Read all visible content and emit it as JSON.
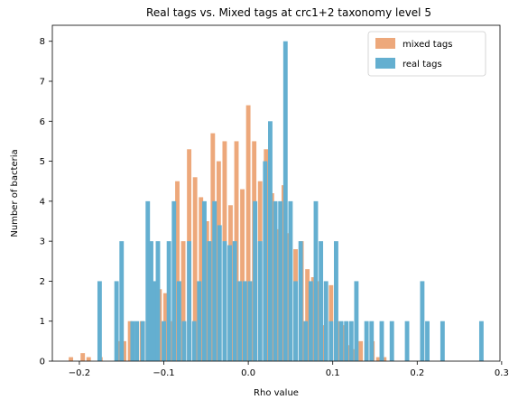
{
  "chart_data": {
    "type": "bar",
    "title": "Real tags vs. Mixed tags at crc1+2 taxonomy level 5",
    "xlabel": "Rho value",
    "ylabel": "Number of bacteria",
    "xlim": [
      -0.232,
      0.298
    ],
    "ylim": [
      0,
      8.4
    ],
    "x_ticks": [
      -0.2,
      -0.1,
      0.0,
      0.1,
      0.2,
      0.3
    ],
    "x_tick_labels": [
      "−0.2",
      "−0.1",
      "0.0",
      "0.1",
      "0.2",
      "0.3"
    ],
    "y_ticks": [
      0,
      1,
      2,
      3,
      4,
      5,
      6,
      7,
      8
    ],
    "y_tick_labels": [
      "0",
      "1",
      "2",
      "3",
      "4",
      "5",
      "6",
      "7",
      "8"
    ],
    "grid": false,
    "legend_position": "top-right",
    "series": [
      {
        "name": "mixed tags",
        "color": "#eda87b",
        "x": [
          -0.21,
          -0.196,
          -0.189,
          -0.175,
          -0.154,
          -0.147,
          -0.14,
          -0.126,
          -0.119,
          -0.112,
          -0.105,
          -0.098,
          -0.091,
          -0.084,
          -0.077,
          -0.07,
          -0.063,
          -0.056,
          -0.049,
          -0.042,
          -0.035,
          -0.028,
          -0.021,
          -0.014,
          -0.007,
          0.0,
          0.007,
          0.014,
          0.021,
          0.028,
          0.035,
          0.042,
          0.049,
          0.056,
          0.063,
          0.07,
          0.077,
          0.084,
          0.091,
          0.098,
          0.105,
          0.112,
          0.119,
          0.126,
          0.133,
          0.14,
          0.147,
          0.154,
          0.161
        ],
        "values": [
          0.1,
          0.2,
          0.1,
          0.1,
          0.5,
          0.5,
          1.0,
          1.0,
          1.0,
          1.9,
          1.8,
          1.7,
          1.0,
          4.5,
          3.0,
          5.3,
          4.6,
          4.1,
          3.5,
          5.7,
          5.0,
          5.5,
          3.9,
          5.5,
          4.3,
          6.4,
          5.5,
          4.5,
          5.3,
          4.2,
          3.3,
          4.4,
          3.2,
          2.8,
          3.0,
          2.3,
          2.1,
          2.0,
          0.9,
          1.9,
          1.0,
          0.9,
          0.4,
          0.3,
          0.5,
          0.5,
          0.5,
          0.1,
          0.1
        ]
      },
      {
        "name": "real tags",
        "color": "#64afd0",
        "x": [
          -0.176,
          -0.156,
          -0.15,
          -0.137,
          -0.132,
          -0.125,
          -0.119,
          -0.115,
          -0.111,
          -0.107,
          -0.1,
          -0.094,
          -0.088,
          -0.082,
          -0.076,
          -0.07,
          -0.064,
          -0.058,
          -0.052,
          -0.046,
          -0.04,
          -0.034,
          -0.028,
          -0.022,
          -0.016,
          -0.01,
          -0.004,
          0.002,
          0.008,
          0.014,
          0.02,
          0.026,
          0.032,
          0.038,
          0.044,
          0.05,
          0.056,
          0.062,
          0.068,
          0.074,
          0.08,
          0.086,
          0.092,
          0.098,
          0.104,
          0.11,
          0.116,
          0.122,
          0.128,
          0.14,
          0.146,
          0.158,
          0.17,
          0.188,
          0.206,
          0.212,
          0.23,
          0.276
        ],
        "values": [
          2.0,
          2.0,
          3.0,
          1.0,
          1.0,
          1.0,
          4.0,
          3.0,
          2.0,
          3.0,
          1.0,
          3.0,
          4.0,
          2.0,
          1.0,
          3.0,
          1.0,
          2.0,
          4.0,
          3.0,
          4.0,
          3.4,
          3.0,
          2.9,
          3.0,
          2.0,
          2.0,
          2.0,
          4.0,
          3.0,
          5.0,
          6.0,
          4.0,
          4.0,
          8.0,
          4.0,
          2.0,
          3.0,
          1.0,
          2.0,
          4.0,
          3.0,
          2.0,
          1.0,
          3.0,
          1.0,
          1.0,
          1.0,
          2.0,
          1.0,
          1.0,
          1.0,
          1.0,
          1.0,
          2.0,
          1.0,
          1.0,
          1.0
        ]
      }
    ]
  }
}
